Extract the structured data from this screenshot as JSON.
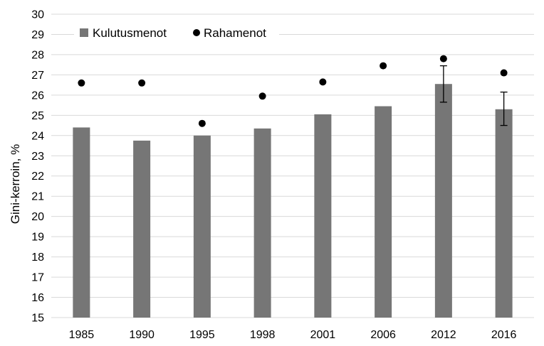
{
  "chart_data": {
    "type": "bar",
    "categories": [
      "1985",
      "1990",
      "1995",
      "1998",
      "2001",
      "2006",
      "2012",
      "2016"
    ],
    "series": [
      {
        "name": "Kulutusmenot",
        "kind": "bar",
        "color": "#767676",
        "values": [
          24.4,
          23.75,
          24.0,
          24.35,
          25.05,
          25.45,
          26.55,
          25.3
        ],
        "error_bars": [
          null,
          null,
          null,
          null,
          null,
          null,
          [
            25.65,
            27.45
          ],
          [
            24.5,
            26.15
          ]
        ]
      },
      {
        "name": "Rahamenot",
        "kind": "dot",
        "color": "#000000",
        "values": [
          26.6,
          26.6,
          24.6,
          25.95,
          26.65,
          27.45,
          27.8,
          27.1
        ]
      }
    ],
    "ylabel": "Gini-kerroin, %",
    "xlabel": "",
    "ylim": [
      15,
      30
    ],
    "yticks": [
      15,
      16,
      17,
      18,
      19,
      20,
      21,
      22,
      23,
      24,
      25,
      26,
      27,
      28,
      29,
      30
    ],
    "grid": true,
    "legend": "top-left"
  }
}
